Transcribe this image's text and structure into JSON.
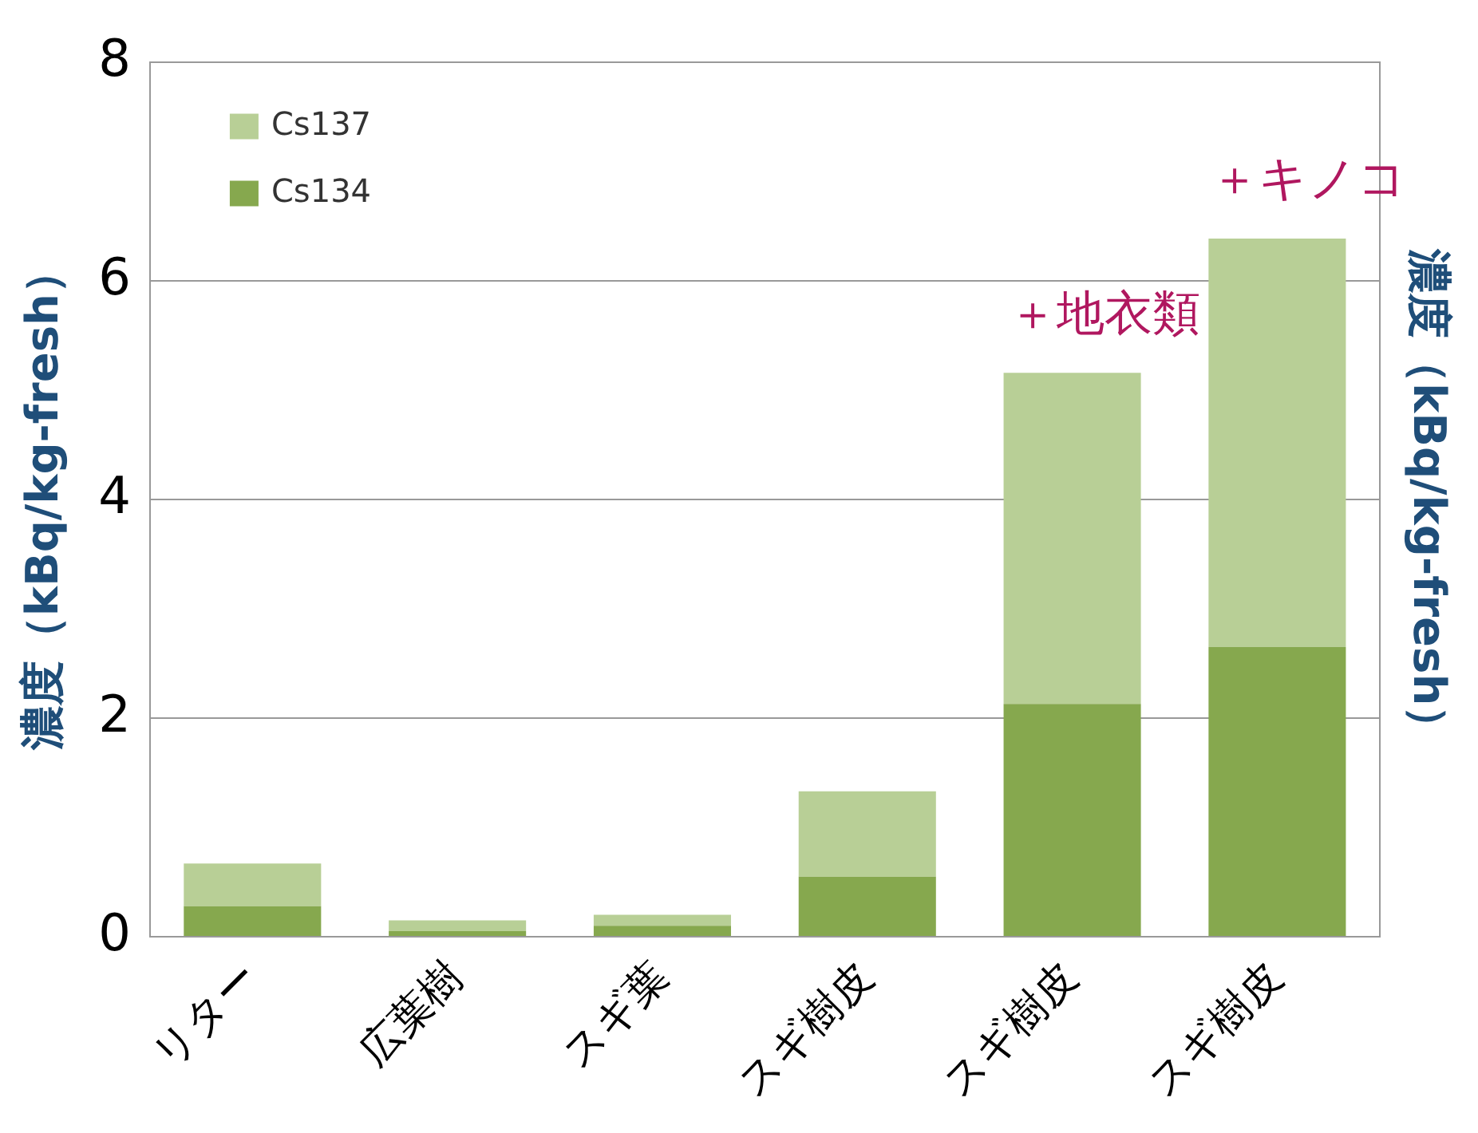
{
  "chart_data": {
    "type": "bar",
    "stacked": true,
    "ylabel": "濃度（kBq/kg-fresh）",
    "y2label": "濃度（kBq/kg-fresh）",
    "categories": [
      "リター",
      "広葉樹",
      "スギ葉",
      "スギ樹皮",
      "スギ樹皮",
      "スギ樹皮"
    ],
    "series": [
      {
        "name": "Cs134",
        "color": "#86a84e",
        "values": [
          0.28,
          0.05,
          0.1,
          0.55,
          2.13,
          2.65
        ]
      },
      {
        "name": "Cs137",
        "color": "#b8cf96",
        "values": [
          0.39,
          0.1,
          0.1,
          0.78,
          3.03,
          3.74
        ]
      }
    ],
    "ylim": [
      0,
      8
    ],
    "yticks": [
      0,
      2,
      4,
      6,
      8
    ],
    "grid": "y",
    "legend": "top left",
    "tick_labels": "y",
    "annotations": [
      "＋地衣類",
      "＋キノコ"
    ]
  }
}
